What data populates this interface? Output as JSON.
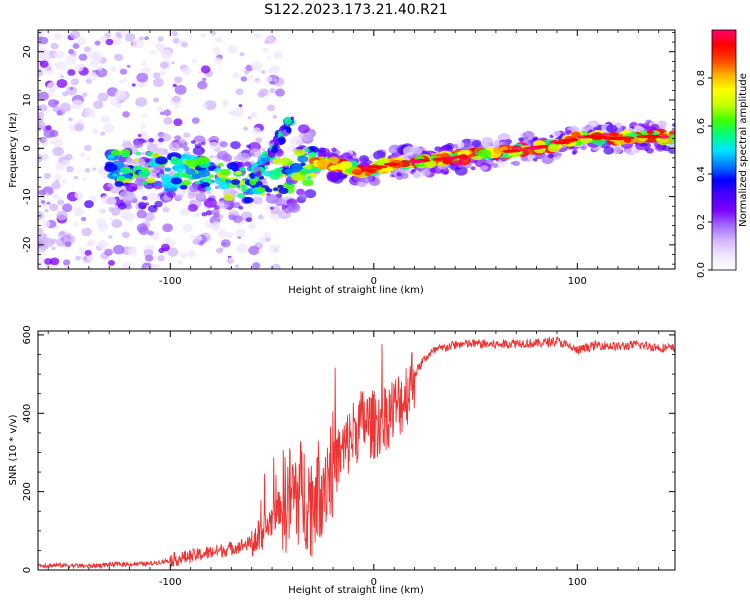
{
  "figure": {
    "title": "S122.2023.173.21.40.R21"
  },
  "chart_data": [
    {
      "type": "heatmap",
      "xlabel": "Height of straight line (km)",
      "ylabel": "Frequency (Hz)",
      "xlim": [
        -165,
        148
      ],
      "ylim": [
        -25,
        24.5
      ],
      "xticks": [
        -100,
        0,
        100
      ],
      "yticks": [
        -20,
        -10,
        0,
        10,
        20
      ],
      "grid": false,
      "colorbar": {
        "label": "Normalized spectral amplitude",
        "range": [
          0,
          1
        ],
        "ticks": [
          0.0,
          0.2,
          0.4,
          0.6,
          0.8
        ],
        "colormap": [
          "#ffffff",
          "#f0e6ff",
          "#d2b4ff",
          "#a066ff",
          "#7a00ff",
          "#4a00ff",
          "#0000ff",
          "#0080ff",
          "#00e5ff",
          "#00ff80",
          "#40ff00",
          "#c8ff00",
          "#ffff00",
          "#ffb000",
          "#ff4000",
          "#ff0000",
          "#ff0070"
        ]
      },
      "ridge": {
        "x": [
          -125,
          -110,
          -95,
          -80,
          -65,
          -55,
          -45,
          -35,
          -25,
          -15,
          -5,
          5,
          15,
          25,
          40,
          55,
          70,
          85,
          95,
          105,
          120,
          135,
          148
        ],
        "y": [
          -4,
          -4.5,
          -5,
          -6,
          -7.5,
          -7,
          -6,
          -4,
          -3,
          -3.5,
          -5,
          -3.5,
          -3,
          -2.5,
          -2,
          -1,
          -0.5,
          0.5,
          1.5,
          2.5,
          2,
          2.5,
          2.2
        ]
      },
      "secondary_ridge": {
        "x": [
          -60,
          -52,
          -45,
          -40
        ],
        "y": [
          -6,
          -2,
          3,
          6
        ]
      }
    },
    {
      "type": "line",
      "xlabel": "Height of straight line (km)",
      "ylabel": "SNR (10 * v/v)",
      "xlim": [
        -165,
        148
      ],
      "ylim": [
        0,
        610
      ],
      "xticks": [
        -100,
        0,
        100
      ],
      "yticks": [
        0,
        200,
        400,
        600
      ],
      "grid": false,
      "series": [
        {
          "color": "#ee3333",
          "x": [
            -165,
            -150,
            -140,
            -130,
            -120,
            -110,
            -100,
            -90,
            -80,
            -70,
            -60,
            -55,
            -50,
            -45,
            -40,
            -35,
            -30,
            -25,
            -20,
            -15,
            -10,
            -5,
            0,
            5,
            10,
            15,
            20,
            25,
            30,
            40,
            50,
            60,
            70,
            80,
            90,
            100,
            110,
            120,
            130,
            140,
            148
          ],
          "values": [
            12,
            12,
            10,
            14,
            15,
            16,
            25,
            35,
            45,
            55,
            70,
            90,
            130,
            170,
            190,
            200,
            170,
            230,
            270,
            300,
            350,
            380,
            370,
            390,
            410,
            440,
            500,
            540,
            560,
            575,
            578,
            575,
            580,
            578,
            585,
            560,
            575,
            570,
            575,
            568,
            565
          ]
        }
      ]
    }
  ]
}
